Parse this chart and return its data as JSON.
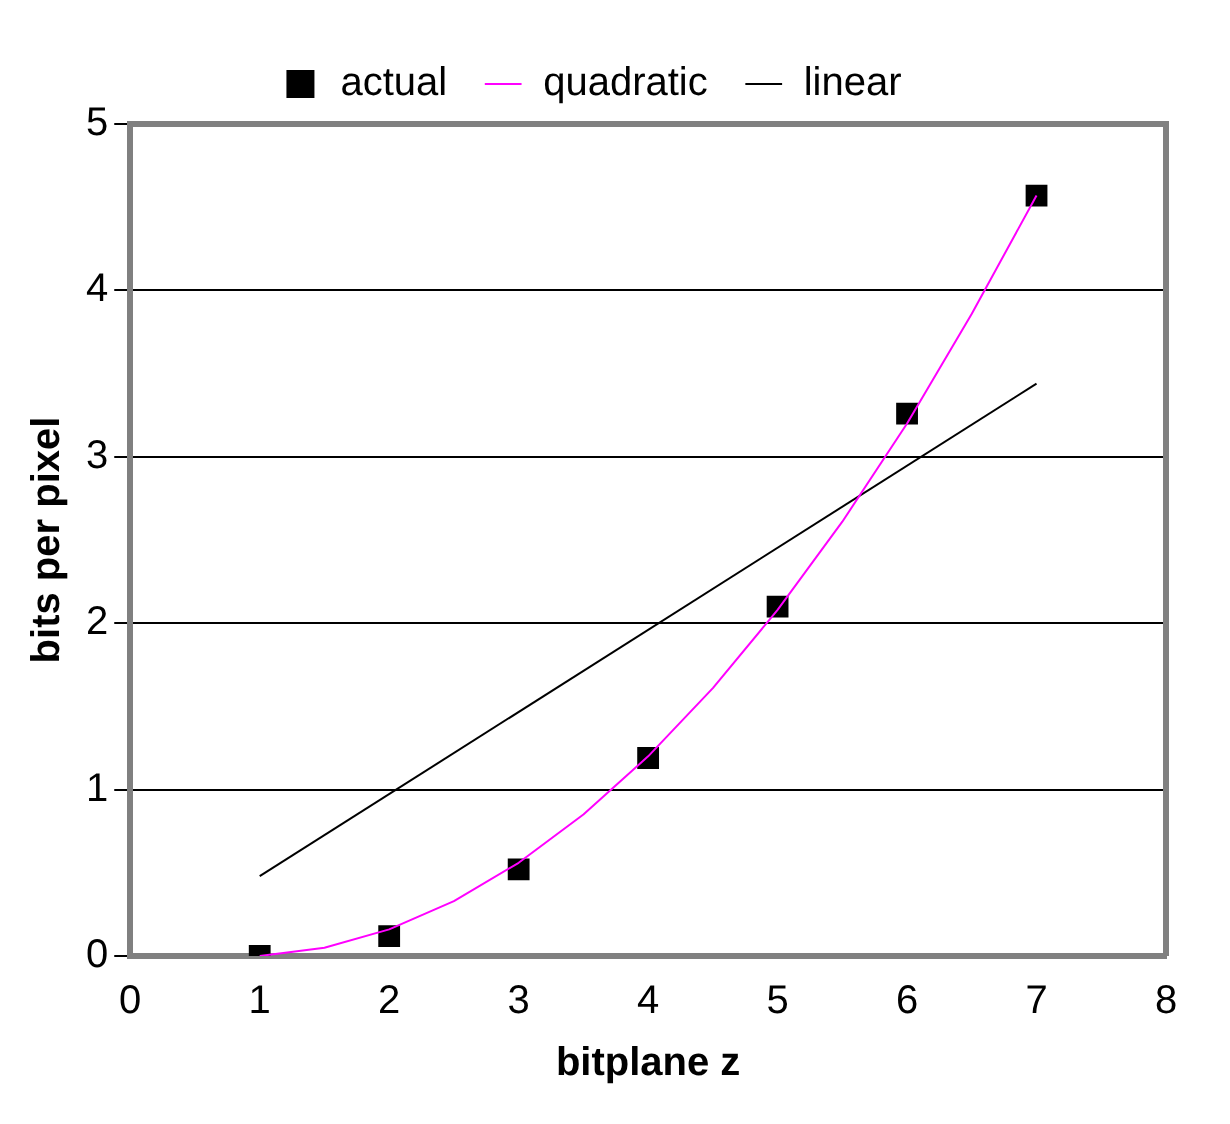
{
  "chart_data": {
    "type": "scatter",
    "xlabel": "bitplane z",
    "ylabel": "bits per pixel",
    "xlim": [
      0,
      8
    ],
    "xticks": [
      0,
      1,
      2,
      3,
      4,
      5,
      6,
      7,
      8
    ],
    "ylim": [
      0,
      5
    ],
    "yticks": [
      0,
      1,
      2,
      3,
      4,
      5
    ],
    "grid": "y",
    "legend": "top",
    "series": [
      {
        "name": "actual",
        "color": "#000000",
        "marker": "square",
        "x": [
          1,
          2,
          3,
          4,
          5,
          6,
          7
        ],
        "values": [
          0,
          0.12,
          0.52,
          1.19,
          2.1,
          3.26,
          4.57
        ]
      },
      {
        "name": "quadratic",
        "type": "line",
        "color": "#ff00ff",
        "marker": "none",
        "x": [
          1,
          1.5,
          2,
          2.5,
          3,
          3.5,
          4,
          4.5,
          5,
          5.5,
          6,
          6.5,
          7
        ],
        "values": [
          0,
          0.05,
          0.16,
          0.33,
          0.56,
          0.85,
          1.2,
          1.61,
          2.08,
          2.61,
          3.2,
          3.86,
          4.57
        ]
      },
      {
        "name": "linear",
        "type": "line",
        "color": "#000000",
        "marker": "none",
        "x": [
          1,
          7
        ],
        "values": [
          0.48,
          3.44
        ]
      }
    ]
  }
}
